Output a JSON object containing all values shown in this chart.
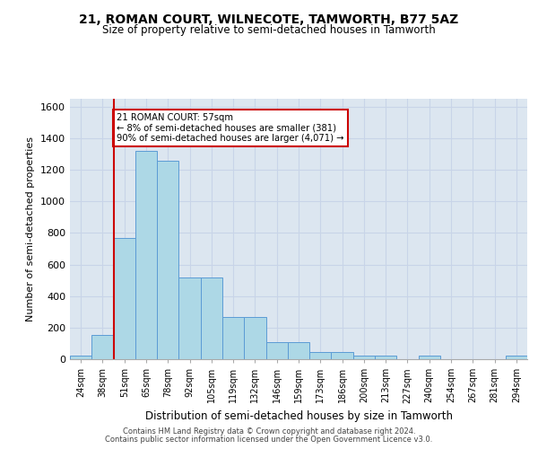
{
  "title": "21, ROMAN COURT, WILNECOTE, TAMWORTH, B77 5AZ",
  "subtitle": "Size of property relative to semi-detached houses in Tamworth",
  "xlabel": "Distribution of semi-detached houses by size in Tamworth",
  "ylabel": "Number of semi-detached properties",
  "categories": [
    "24sqm",
    "38sqm",
    "51sqm",
    "65sqm",
    "78sqm",
    "92sqm",
    "105sqm",
    "119sqm",
    "132sqm",
    "146sqm",
    "159sqm",
    "173sqm",
    "186sqm",
    "200sqm",
    "213sqm",
    "227sqm",
    "240sqm",
    "254sqm",
    "267sqm",
    "281sqm",
    "294sqm"
  ],
  "values": [
    20,
    155,
    770,
    1320,
    1260,
    520,
    520,
    270,
    270,
    110,
    110,
    45,
    45,
    20,
    20,
    0,
    20,
    0,
    0,
    0,
    20
  ],
  "bar_color": "#add8e6",
  "bar_edge_color": "#5b9bd5",
  "property_line_x": 1.5,
  "property_line_color": "#cc0000",
  "annotation_text": "21 ROMAN COURT: 57sqm\n← 8% of semi-detached houses are smaller (381)\n90% of semi-detached houses are larger (4,071) →",
  "annotation_box_color": "#ffffff",
  "annotation_box_edge": "#cc0000",
  "ylim": [
    0,
    1650
  ],
  "yticks": [
    0,
    200,
    400,
    600,
    800,
    1000,
    1200,
    1400,
    1600
  ],
  "footnote1": "Contains HM Land Registry data © Crown copyright and database right 2024.",
  "footnote2": "Contains public sector information licensed under the Open Government Licence v3.0.",
  "grid_color": "#c8d4e8",
  "background_color": "#dce6f0"
}
